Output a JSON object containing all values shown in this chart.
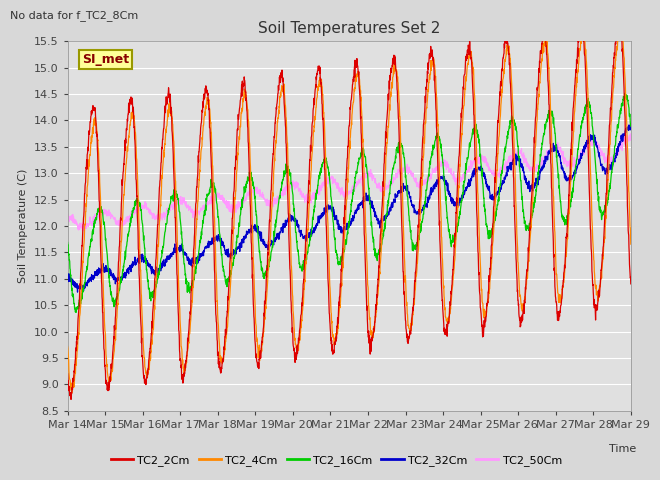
{
  "title": "Soil Temperatures Set 2",
  "subtitle": "No data for f_TC2_8Cm",
  "xlabel": "Time",
  "ylabel": "Soil Temperature (C)",
  "ylim": [
    8.5,
    15.5
  ],
  "yticks": [
    8.5,
    9.0,
    9.5,
    10.0,
    10.5,
    11.0,
    11.5,
    12.0,
    12.5,
    13.0,
    13.5,
    14.0,
    14.5,
    15.0,
    15.5
  ],
  "x_tick_labels": [
    "Mar 14",
    "Mar 15",
    "Mar 16",
    "Mar 17",
    "Mar 18",
    "Mar 19",
    "Mar 20",
    "Mar 21",
    "Mar 22",
    "Mar 23",
    "Mar 24",
    "Mar 25",
    "Mar 26",
    "Mar 27",
    "Mar 28",
    "Mar 29"
  ],
  "colors": {
    "TC2_2Cm": "#dd0000",
    "TC2_4Cm": "#ff8800",
    "TC2_16Cm": "#00cc00",
    "TC2_32Cm": "#0000cc",
    "TC2_50Cm": "#ff99ff"
  },
  "fig_bg_color": "#d8d8d8",
  "plot_bg_color": "#e0e0e0",
  "legend_label": "SI_met",
  "legend_bg": "#ffff99",
  "legend_border": "#999900"
}
